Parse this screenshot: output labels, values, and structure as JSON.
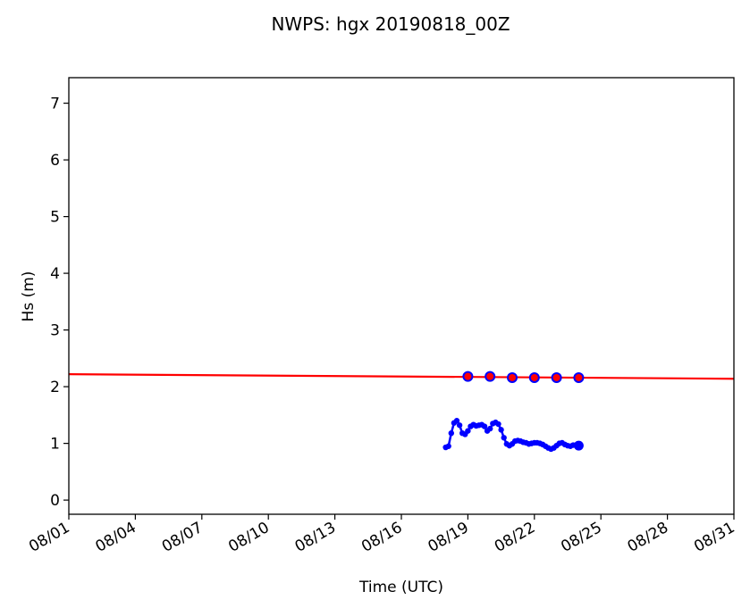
{
  "chart_data": {
    "type": "line",
    "title": "NWPS: hgx 20190818_00Z",
    "xlabel": "Time (UTC)",
    "ylabel": "Hs (m)",
    "xlim": [
      "2019-08-01",
      "2019-08-31"
    ],
    "ylim": [
      -0.25,
      7.45
    ],
    "xticks": [
      "08/01",
      "08/04",
      "08/07",
      "08/10",
      "08/13",
      "08/16",
      "08/19",
      "08/22",
      "08/25",
      "08/28",
      "08/31"
    ],
    "xtick_dates": [
      "2019-08-01",
      "2019-08-04",
      "2019-08-07",
      "2019-08-10",
      "2019-08-13",
      "2019-08-16",
      "2019-08-19",
      "2019-08-22",
      "2019-08-25",
      "2019-08-28",
      "2019-08-31"
    ],
    "yticks": [
      "0",
      "1",
      "2",
      "3",
      "4",
      "5",
      "6",
      "7"
    ],
    "ytick_values": [
      0,
      1,
      2,
      3,
      4,
      5,
      6,
      7
    ],
    "series": [
      {
        "style": "line",
        "color": "#ff0000",
        "x": [
          "2019-08-01",
          "2019-08-31"
        ],
        "y": [
          2.22,
          2.14
        ]
      },
      {
        "style": "markers",
        "color": "#0000ff",
        "fill": "#ff0000",
        "x": [
          "2019-08-19 00:00",
          "2019-08-20 00:00",
          "2019-08-21 00:00",
          "2019-08-22 00:00",
          "2019-08-23 00:00",
          "2019-08-24 00:00"
        ],
        "y": [
          2.18,
          2.18,
          2.16,
          2.16,
          2.16,
          2.16
        ]
      },
      {
        "style": "dotted-line",
        "color": "#0000ff",
        "x": [
          "2019-08-18 00:00",
          "2019-08-18 03:00",
          "2019-08-18 06:00",
          "2019-08-18 09:00",
          "2019-08-18 12:00",
          "2019-08-18 15:00",
          "2019-08-18 18:00",
          "2019-08-18 21:00",
          "2019-08-19 00:00",
          "2019-08-19 03:00",
          "2019-08-19 06:00",
          "2019-08-19 09:00",
          "2019-08-19 12:00",
          "2019-08-19 15:00",
          "2019-08-19 18:00",
          "2019-08-19 21:00",
          "2019-08-20 00:00",
          "2019-08-20 03:00",
          "2019-08-20 06:00",
          "2019-08-20 09:00",
          "2019-08-20 12:00",
          "2019-08-20 15:00",
          "2019-08-20 18:00",
          "2019-08-20 21:00",
          "2019-08-21 00:00",
          "2019-08-21 03:00",
          "2019-08-21 06:00",
          "2019-08-21 09:00",
          "2019-08-21 12:00",
          "2019-08-21 15:00",
          "2019-08-21 18:00",
          "2019-08-21 21:00",
          "2019-08-22 00:00",
          "2019-08-22 03:00",
          "2019-08-22 06:00",
          "2019-08-22 09:00",
          "2019-08-22 12:00",
          "2019-08-22 15:00",
          "2019-08-22 18:00",
          "2019-08-22 21:00",
          "2019-08-23 00:00",
          "2019-08-23 03:00",
          "2019-08-23 06:00",
          "2019-08-23 09:00",
          "2019-08-23 12:00",
          "2019-08-23 15:00",
          "2019-08-23 18:00",
          "2019-08-23 21:00",
          "2019-08-24 00:00"
        ],
        "y": [
          0.93,
          0.95,
          1.18,
          1.36,
          1.4,
          1.32,
          1.18,
          1.16,
          1.22,
          1.3,
          1.33,
          1.31,
          1.32,
          1.33,
          1.3,
          1.22,
          1.26,
          1.35,
          1.37,
          1.34,
          1.24,
          1.1,
          0.99,
          0.96,
          0.99,
          1.04,
          1.05,
          1.04,
          1.02,
          1.01,
          0.99,
          1.0,
          1.01,
          1.01,
          1.0,
          0.98,
          0.95,
          0.92,
          0.9,
          0.92,
          0.96,
          1.0,
          1.01,
          0.98,
          0.96,
          0.95,
          0.97,
          0.97,
          0.96
        ]
      }
    ],
    "grid": false,
    "legend": "none"
  }
}
